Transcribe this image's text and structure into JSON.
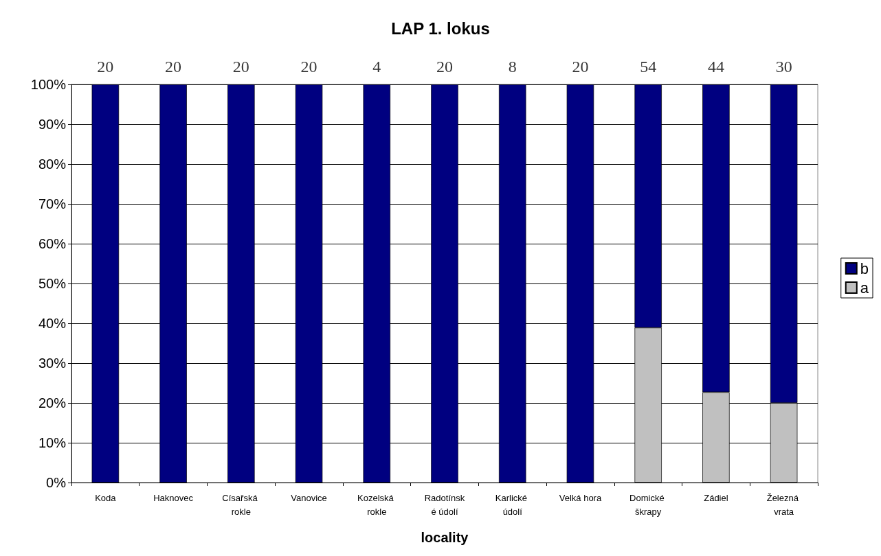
{
  "chart_data": {
    "type": "bar",
    "title": "LAP 1. lokus",
    "xlabel": "locality",
    "stacked": true,
    "categories": [
      "Koda",
      "Haknovec",
      "Císařská rokle",
      "Vanovice",
      "Kozelská rokle",
      "Radotínské údolí",
      "Karlické údolí",
      "Velká hora",
      "Domické škrapy",
      "Zádiel",
      "Železná vrata"
    ],
    "series": [
      {
        "name": "a",
        "color": "#c0c0c0",
        "values": [
          0,
          0,
          0,
          0,
          0,
          0,
          0,
          0,
          38.9,
          22.7,
          20
        ]
      },
      {
        "name": "b",
        "color": "#000080",
        "values": [
          100,
          100,
          100,
          100,
          100,
          100,
          100,
          100,
          61.1,
          77.3,
          80
        ]
      }
    ],
    "annotations": [
      {
        "text": "20",
        "x": "Koda",
        "y": 100
      },
      {
        "text": "20",
        "x": "Haknovec",
        "y": 100
      },
      {
        "text": "20",
        "x": "Císařská rokle",
        "y": 100
      },
      {
        "text": "20",
        "x": "Vanovice",
        "y": 100
      },
      {
        "text": "4",
        "x": "Kozelská rokle",
        "y": 100
      },
      {
        "text": "20",
        "x": "Radotínské údolí",
        "y": 100
      },
      {
        "text": "8",
        "x": "Karlické údolí",
        "y": 100
      },
      {
        "text": "20",
        "x": "Velká hora",
        "y": 100
      },
      {
        "text": "54",
        "x": "Domické škrapy",
        "y": 100
      },
      {
        "text": "44",
        "x": "Zádiel",
        "y": 100
      },
      {
        "text": "30",
        "x": "Železná vrata",
        "y": 100
      }
    ],
    "ylim": [
      0,
      100
    ],
    "yticks": [
      {
        "value": 0,
        "label": "0%"
      },
      {
        "value": 10,
        "label": "10%"
      },
      {
        "value": 20,
        "label": "20%"
      },
      {
        "value": 30,
        "label": "30%"
      },
      {
        "value": 40,
        "label": "40%"
      },
      {
        "value": 50,
        "label": "50%"
      },
      {
        "value": 60,
        "label": "60%"
      },
      {
        "value": 70,
        "label": "70%"
      },
      {
        "value": 80,
        "label": "80%"
      },
      {
        "value": 90,
        "label": "90%"
      },
      {
        "value": 100,
        "label": "100%"
      }
    ],
    "grid": "y",
    "legend": "right"
  }
}
